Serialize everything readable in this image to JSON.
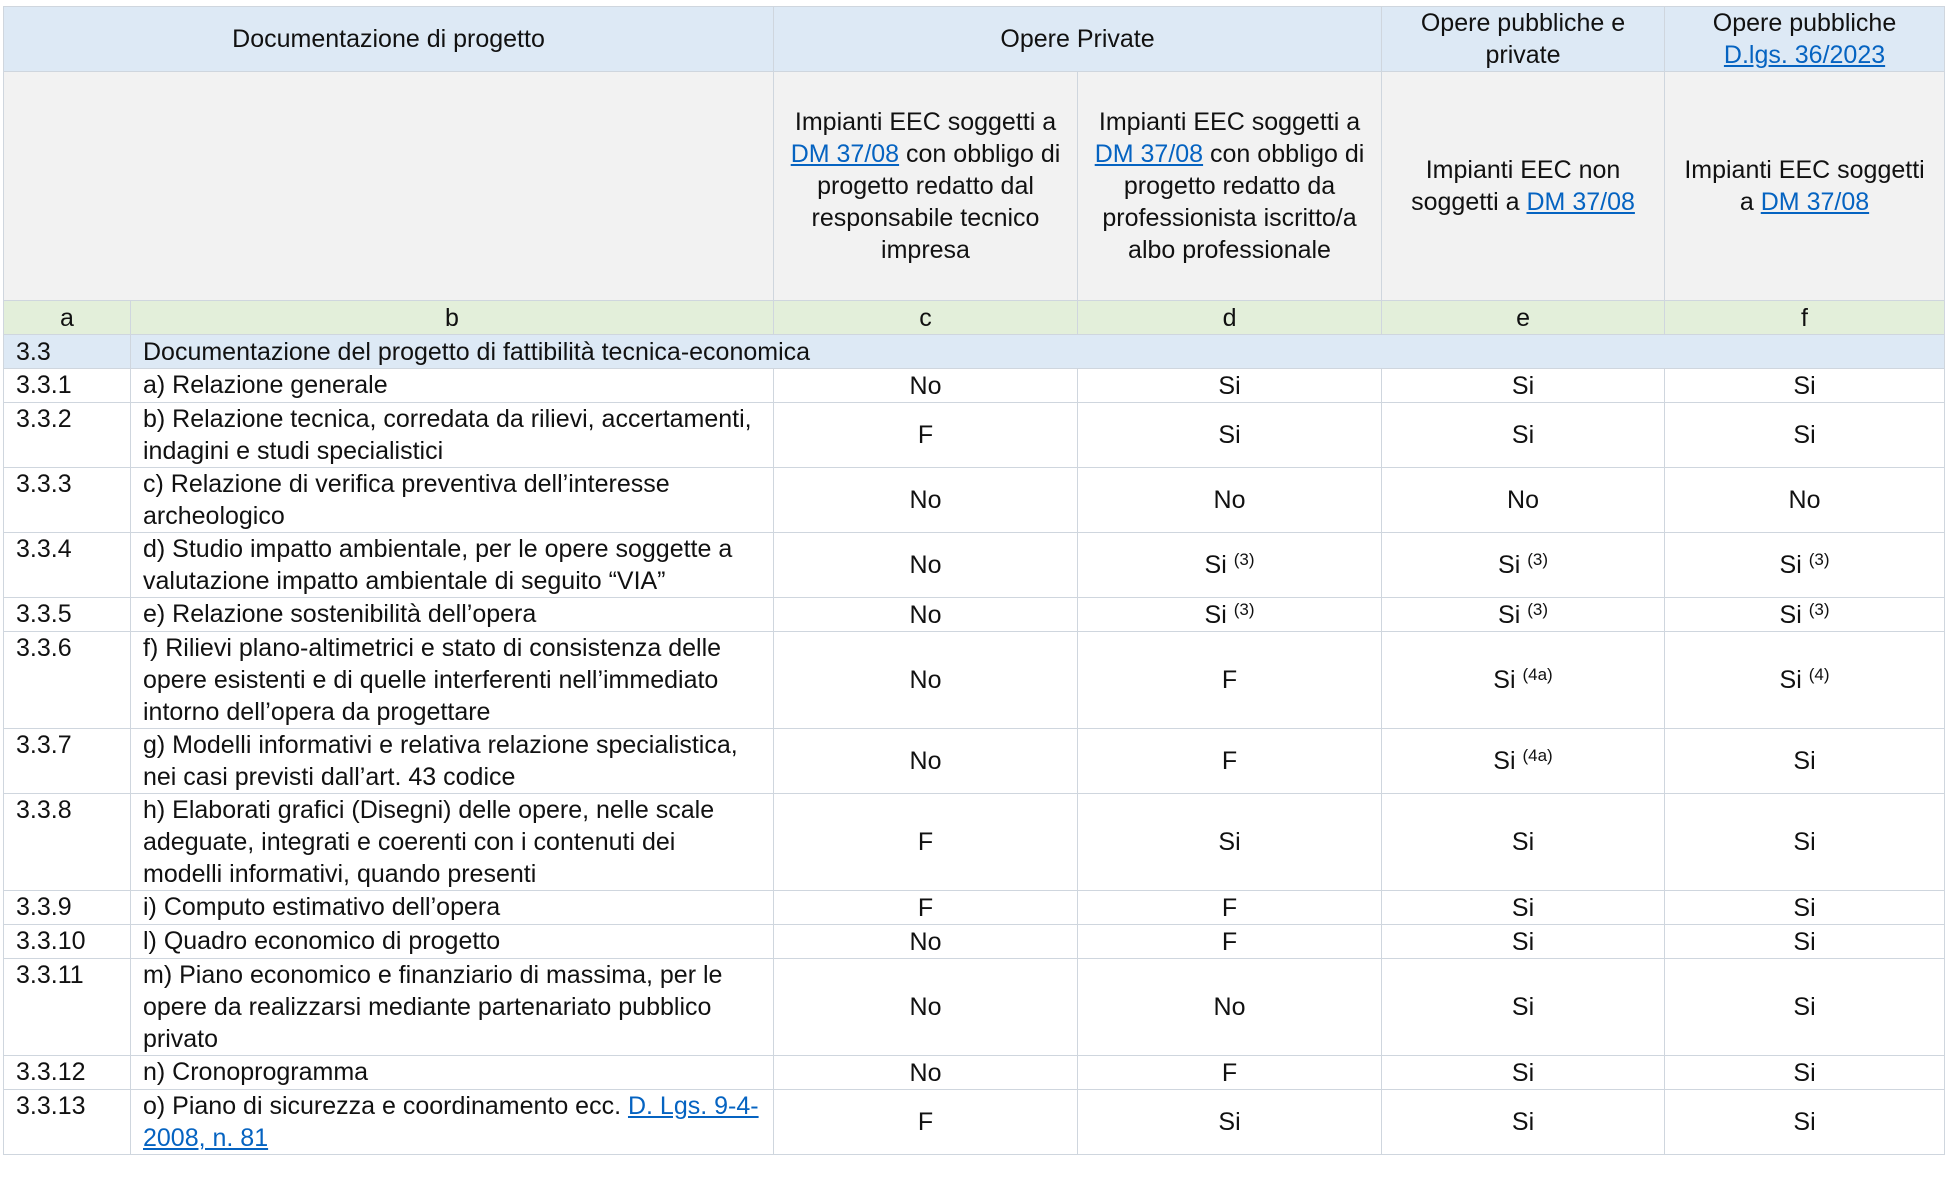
{
  "header_row_1": {
    "documentation": "Documentazione di progetto",
    "private_works": "Opere Private",
    "public_private_works": "Opere pubbliche e private",
    "public_works": {
      "text": "Opere pubbliche",
      "link": "D.lgs. 36/2023"
    }
  },
  "header_row_2": [
    {
      "before": "Impianti EEC soggetti a",
      "link": "DM 37/08",
      "after": "con obbligo di progetto redatto dal responsabile tecnico impresa"
    },
    {
      "before": "Impianti EEC soggetti a",
      "link": "DM 37/08",
      "after": "con obbligo di progetto redatto da professionista iscritto/a albo professionale"
    },
    {
      "before": "Impianti EEC non soggetti a",
      "link": "DM 37/08"
    },
    {
      "before": "Impianti EEC soggetti a",
      "link": "DM 37/08"
    }
  ],
  "column_letters": [
    "a",
    "b",
    "c",
    "d",
    "e",
    "f"
  ],
  "section": {
    "code": "3.3",
    "title": "Documentazione del progetto di fattibilità tecnica-economica"
  },
  "rows": [
    {
      "code": "3.3.1",
      "description": "a) Relazione generale",
      "values": [
        {
          "text": "No"
        },
        {
          "text": "Si"
        },
        {
          "text": "Si"
        },
        {
          "text": "Si"
        }
      ]
    },
    {
      "code": "3.3.2",
      "description": "b) Relazione tecnica, corredata da rilievi, accertamenti, indagini e studi specialistici",
      "values": [
        {
          "text": "F"
        },
        {
          "text": "Si"
        },
        {
          "text": "Si"
        },
        {
          "text": "Si"
        }
      ]
    },
    {
      "code": "3.3.3",
      "description": "c) Relazione di verifica preventiva dell’interesse archeologico",
      "values": [
        {
          "text": "No"
        },
        {
          "text": "No"
        },
        {
          "text": "No"
        },
        {
          "text": "No"
        }
      ]
    },
    {
      "code": "3.3.4",
      "description": "d) Studio impatto ambientale, per le opere soggette a valutazione impatto ambientale di seguito “VIA”",
      "values": [
        {
          "text": "No"
        },
        {
          "text": "Si",
          "note": "(3)"
        },
        {
          "text": "Si",
          "note": "(3)"
        },
        {
          "text": "Si",
          "note": "(3)"
        }
      ]
    },
    {
      "code": "3.3.5",
      "description": "e) Relazione sostenibilità dell’opera",
      "values": [
        {
          "text": "No"
        },
        {
          "text": "Si",
          "note": "(3)"
        },
        {
          "text": "Si",
          "note": "(3)"
        },
        {
          "text": "Si",
          "note": "(3)"
        }
      ]
    },
    {
      "code": "3.3.6",
      "description": "f) Rilievi plano-altimetrici e stato di consistenza delle opere esistenti e di quelle interferenti nell’immediato intorno dell’opera da progettare",
      "values": [
        {
          "text": "No"
        },
        {
          "text": "F"
        },
        {
          "text": "Si",
          "note": "(4a)"
        },
        {
          "text": "Si",
          "note": "(4)"
        }
      ]
    },
    {
      "code": "3.3.7",
      "description": "g) Modelli informativi e relativa relazione specialistica, nei casi previsti dall’art. 43 codice",
      "values": [
        {
          "text": "No"
        },
        {
          "text": "F"
        },
        {
          "text": "Si",
          "note": "(4a)"
        },
        {
          "text": "Si"
        }
      ]
    },
    {
      "code": "3.3.8",
      "description": "h) Elaborati grafici (Disegni) delle opere, nelle scale adeguate, integrati e coerenti con i contenuti dei modelli informativi, quando presenti",
      "values": [
        {
          "text": "F"
        },
        {
          "text": "Si"
        },
        {
          "text": "Si"
        },
        {
          "text": "Si"
        }
      ]
    },
    {
      "code": "3.3.9",
      "description": "i) Computo estimativo dell’opera",
      "values": [
        {
          "text": "F"
        },
        {
          "text": "F"
        },
        {
          "text": "Si"
        },
        {
          "text": "Si"
        }
      ]
    },
    {
      "code": "3.3.10",
      "description": "l) Quadro economico di progetto",
      "values": [
        {
          "text": "No"
        },
        {
          "text": "F"
        },
        {
          "text": "Si"
        },
        {
          "text": "Si"
        }
      ]
    },
    {
      "code": "3.3.11",
      "description": "m) Piano economico e finanziario di massima, per le opere da realizzarsi mediante partenariato pubblico privato",
      "values": [
        {
          "text": "No"
        },
        {
          "text": "No"
        },
        {
          "text": "Si"
        },
        {
          "text": "Si"
        }
      ]
    },
    {
      "code": "3.3.12",
      "description": "n) Cronoprogramma",
      "values": [
        {
          "text": "No"
        },
        {
          "text": "F"
        },
        {
          "text": "Si"
        },
        {
          "text": "Si"
        }
      ]
    },
    {
      "code": "3.3.13",
      "description": "o) Piano di sicurezza e coordinamento ecc.",
      "link": "D. Lgs. 9-4-2008, n. 81",
      "values": [
        {
          "text": "F"
        },
        {
          "text": "Si"
        },
        {
          "text": "Si"
        },
        {
          "text": "Si"
        }
      ]
    }
  ]
}
